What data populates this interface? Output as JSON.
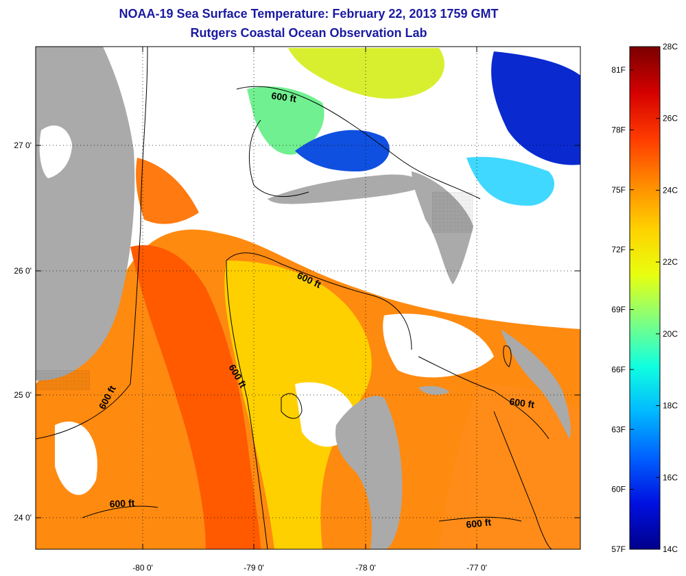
{
  "title": "NOAA-19 Sea Surface Temperature:  February 22, 2013 1759 GMT",
  "subtitle": "Rutgers Coastal Ocean Observation Lab",
  "map": {
    "x_ticks": [
      "-80 0'",
      "-79 0'",
      "-78 0'",
      "-77 0'"
    ],
    "y_ticks": [
      "27 0'",
      "26 0'",
      "25 0'",
      "24 0'"
    ],
    "contour_label": "600 ft",
    "land_color": "#aaaaaa",
    "cloud_color": "#ffffff"
  },
  "colorbar": {
    "celsius_labels": [
      "28C",
      "26C",
      "24C",
      "22C",
      "20C",
      "18C",
      "16C",
      "14C"
    ],
    "fahrenheit_labels": [
      "81F",
      "78F",
      "75F",
      "72F",
      "69F",
      "66F",
      "63F",
      "60F",
      "57F"
    ],
    "colors": [
      "#7a0000",
      "#d40000",
      "#ff3a00",
      "#ff8a00",
      "#ffd200",
      "#e8ff10",
      "#80ff80",
      "#10ffe0",
      "#00b8ff",
      "#0060ff",
      "#0010e0",
      "#00008c"
    ]
  }
}
